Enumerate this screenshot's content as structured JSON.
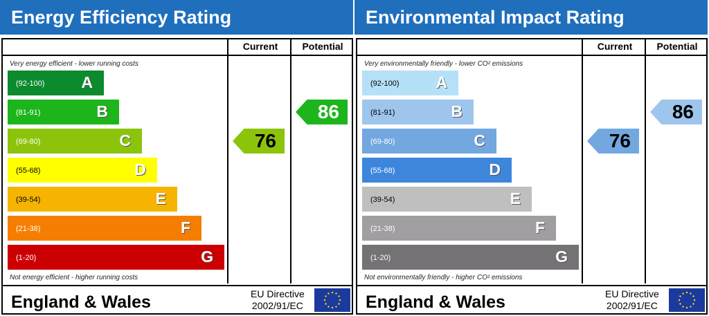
{
  "panels": [
    {
      "title": "Energy Efficiency Rating",
      "current_label": "Current",
      "potential_label": "Potential",
      "top_note": "Very energy efficient - lower running costs",
      "bottom_note": "Not energy efficient - higher running costs",
      "footer": "England & Wales",
      "directive_line1": "EU Directive",
      "directive_line2": "2002/91/EC",
      "bands": [
        {
          "letter": "A",
          "range": "(92-100)",
          "color": "#0b8a2e",
          "text": "#fff"
        },
        {
          "letter": "B",
          "range": "(81-91)",
          "color": "#1cb51c",
          "text": "#fff"
        },
        {
          "letter": "C",
          "range": "(69-80)",
          "color": "#8cc40c",
          "text": "#fff"
        },
        {
          "letter": "D",
          "range": "(55-68)",
          "color": "#ffff00",
          "text": "#000"
        },
        {
          "letter": "E",
          "range": "(39-54)",
          "color": "#f6b400",
          "text": "#000"
        },
        {
          "letter": "F",
          "range": "(21-38)",
          "color": "#f57e00",
          "text": "#fff"
        },
        {
          "letter": "G",
          "range": "(1-20)",
          "color": "#cc0000",
          "text": "#fff"
        }
      ],
      "current": {
        "value": "76",
        "band": "C",
        "color": "#8cc40c",
        "text": "#000"
      },
      "potential": {
        "value": "86",
        "band": "B",
        "color": "#1cb51c",
        "text": "#fff"
      }
    },
    {
      "title": "Environmental Impact Rating",
      "current_label": "Current",
      "potential_label": "Potential",
      "top_note": "Very environmentally friendly - lower CO² emissions",
      "bottom_note": "Not environmentally friendly - higher CO² emissions",
      "footer": "England & Wales",
      "directive_line1": "EU Directive",
      "directive_line2": "2002/91/EC",
      "bands": [
        {
          "letter": "A",
          "range": "(92-100)",
          "color": "#b5e1f8",
          "text": "#000"
        },
        {
          "letter": "B",
          "range": "(81-91)",
          "color": "#9ec5ec",
          "text": "#000"
        },
        {
          "letter": "C",
          "range": "(69-80)",
          "color": "#72a7e0",
          "text": "#fff"
        },
        {
          "letter": "D",
          "range": "(55-68)",
          "color": "#3d86dc",
          "text": "#fff"
        },
        {
          "letter": "E",
          "range": "(39-54)",
          "color": "#c0bfc0",
          "text": "#000"
        },
        {
          "letter": "F",
          "range": "(21-38)",
          "color": "#a19ea1",
          "text": "#fff"
        },
        {
          "letter": "G",
          "range": "(1-20)",
          "color": "#747274",
          "text": "#fff"
        }
      ],
      "current": {
        "value": "76",
        "band": "C",
        "color": "#72a7e0",
        "text": "#000"
      },
      "potential": {
        "value": "86",
        "band": "B",
        "color": "#9ec5ec",
        "text": "#000"
      }
    }
  ]
}
